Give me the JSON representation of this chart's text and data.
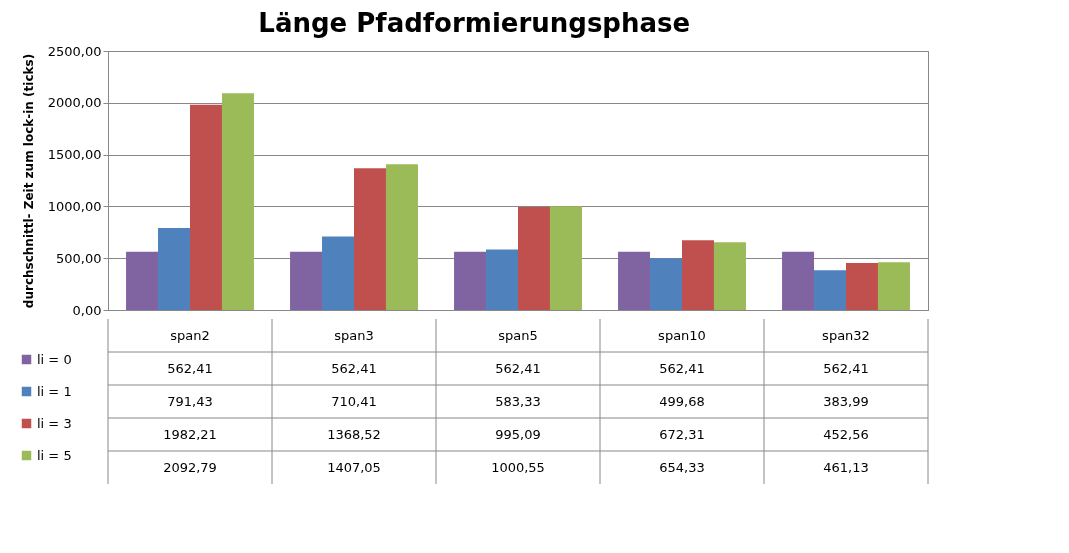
{
  "chart_data": {
    "type": "bar",
    "title": "Länge Pfadformierungsphase",
    "ylabel": "durchschnittl- Zeit zum lock-in (ticks)",
    "categories": [
      "span2",
      "span3",
      "span5",
      "span10",
      "span32"
    ],
    "series": [
      {
        "name": "li = 0",
        "color": "#8064a2",
        "values": [
          562.41,
          562.41,
          562.41,
          562.41,
          562.41
        ],
        "value_labels": [
          "562,41",
          "562,41",
          "562,41",
          "562,41",
          "562,41"
        ]
      },
      {
        "name": "li = 1",
        "color": "#4f81bd",
        "values": [
          791.43,
          710.41,
          583.33,
          499.68,
          383.99
        ],
        "value_labels": [
          "791,43",
          "710,41",
          "583,33",
          "499,68",
          "383,99"
        ]
      },
      {
        "name": "li = 3",
        "color": "#c0504d",
        "values": [
          1982.21,
          1368.52,
          995.09,
          672.31,
          452.56
        ],
        "value_labels": [
          "1982,21",
          "1368,52",
          "995,09",
          "672,31",
          "452,56"
        ]
      },
      {
        "name": "li = 5",
        "color": "#9bbb59",
        "values": [
          2092.79,
          1407.05,
          1000.55,
          654.33,
          461.13
        ],
        "value_labels": [
          "2092,79",
          "1407,05",
          "1000,55",
          "654,33",
          "461,13"
        ]
      }
    ],
    "ylim": [
      0,
      2500
    ],
    "yticks": [
      {
        "value": 0,
        "label": "0,00"
      },
      {
        "value": 500,
        "label": "500,00"
      },
      {
        "value": 1000,
        "label": "1000,00"
      },
      {
        "value": 1500,
        "label": "1500,00"
      },
      {
        "value": 2000,
        "label": "2000,00"
      },
      {
        "value": 2500,
        "label": "2500,00"
      }
    ],
    "grid": "y",
    "legend": "bottom left"
  }
}
